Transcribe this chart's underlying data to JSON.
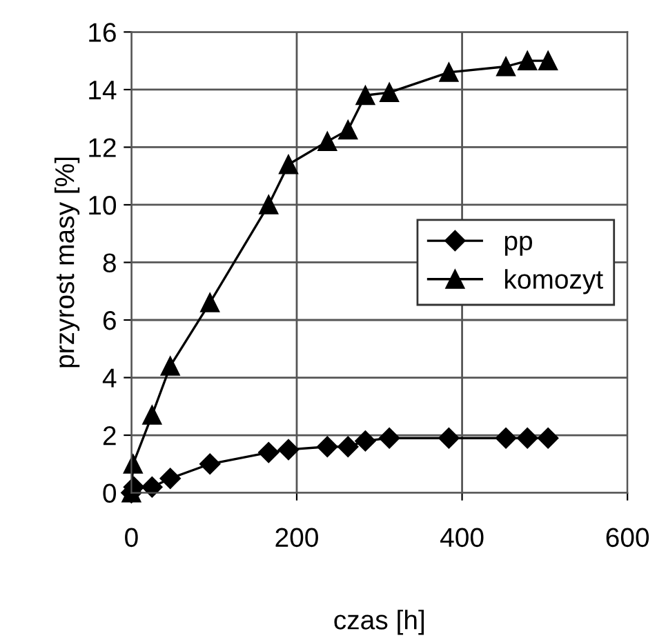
{
  "chart_data": {
    "type": "line",
    "xlabel": "czas [h]",
    "ylabel": "przyrost masy [%]",
    "xlim": [
      0,
      600
    ],
    "xticks": [
      0,
      200,
      400,
      600
    ],
    "ylim": [
      0,
      16
    ],
    "yticks": [
      0,
      2,
      4,
      6,
      8,
      10,
      12,
      14,
      16
    ],
    "grid": true,
    "legend": "center right",
    "line_style": "solid",
    "series": [
      {
        "name": "pp",
        "color": "#000000",
        "marker": "diamond",
        "x": [
          0,
          3,
          25,
          47,
          95,
          166,
          190,
          237,
          262,
          283,
          312,
          384,
          453,
          479,
          504
        ],
        "values": [
          0,
          0.2,
          0.2,
          0.5,
          1.0,
          1.4,
          1.5,
          1.6,
          1.6,
          1.8,
          1.9,
          1.9,
          1.9,
          1.9,
          1.9
        ]
      },
      {
        "name": "komozyt",
        "color": "#000000",
        "marker": "triangle",
        "x": [
          0,
          2,
          25,
          47,
          95,
          166,
          190,
          237,
          262,
          283,
          312,
          384,
          453,
          479,
          504
        ],
        "values": [
          0,
          1.0,
          2.7,
          4.4,
          6.6,
          10.0,
          11.4,
          12.2,
          12.6,
          13.8,
          13.9,
          14.6,
          14.8,
          15.0,
          15.0
        ]
      }
    ]
  }
}
